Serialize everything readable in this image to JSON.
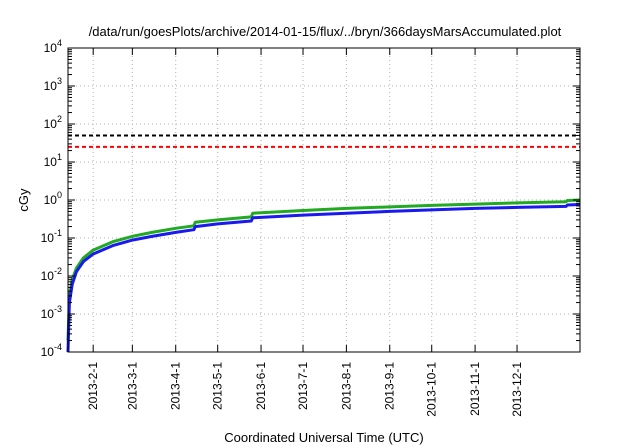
{
  "chart_data": {
    "type": "line",
    "title": "/data/run/goesPlots/archive/2014-01-15/flux/../bryn/366daysMarsAccumulated.plot",
    "xlabel": "Coordinated Universal Time (UTC)",
    "ylabel": "cGy",
    "yscale": "log",
    "ylim": [
      0.0001,
      10000
    ],
    "y_ticks": [
      {
        "value": 0.0001,
        "base": "10",
        "exp": "-4"
      },
      {
        "value": 0.001,
        "base": "10",
        "exp": "-3"
      },
      {
        "value": 0.01,
        "base": "10",
        "exp": "-2"
      },
      {
        "value": 0.1,
        "base": "10",
        "exp": "-1"
      },
      {
        "value": 1,
        "base": "10",
        "exp": "0"
      },
      {
        "value": 10,
        "base": "10",
        "exp": "1"
      },
      {
        "value": 100,
        "base": "10",
        "exp": "2"
      },
      {
        "value": 1000,
        "base": "10",
        "exp": "3"
      },
      {
        "value": 10000,
        "base": "10",
        "exp": "4"
      }
    ],
    "xlim": [
      "2013-01-14",
      "2014-01-15"
    ],
    "x_ticks": [
      {
        "date": "2013-02-01",
        "label": "2013-2-1"
      },
      {
        "date": "2013-03-01",
        "label": "2013-3-1"
      },
      {
        "date": "2013-04-01",
        "label": "2013-4-1"
      },
      {
        "date": "2013-05-01",
        "label": "2013-5-1"
      },
      {
        "date": "2013-06-01",
        "label": "2013-6-1"
      },
      {
        "date": "2013-07-01",
        "label": "2013-7-1"
      },
      {
        "date": "2013-08-01",
        "label": "2013-8-1"
      },
      {
        "date": "2013-09-01",
        "label": "2013-9-1"
      },
      {
        "date": "2013-10-01",
        "label": "2013-10-1"
      },
      {
        "date": "2013-11-01",
        "label": "2013-11-1"
      },
      {
        "date": "2013-12-01",
        "label": "2013-12-1"
      }
    ],
    "grid": true,
    "reference_lines": [
      {
        "y": 50,
        "color": "#000000",
        "style": "dashed"
      },
      {
        "y": 25,
        "color": "#ff0000",
        "style": "dashed"
      }
    ],
    "series": [
      {
        "color": "#22aa22",
        "points": [
          [
            "2013-01-14",
            0.0002
          ],
          [
            "2013-01-15",
            0.003
          ],
          [
            "2013-01-17",
            0.008
          ],
          [
            "2013-01-20",
            0.016
          ],
          [
            "2013-01-25",
            0.03
          ],
          [
            "2013-02-01",
            0.048
          ],
          [
            "2013-02-15",
            0.08
          ],
          [
            "2013-03-01",
            0.11
          ],
          [
            "2013-03-15",
            0.14
          ],
          [
            "2013-04-01",
            0.18
          ],
          [
            "2013-04-14",
            0.21
          ],
          [
            "2013-04-15",
            0.26
          ],
          [
            "2013-05-01",
            0.3
          ],
          [
            "2013-05-25",
            0.36
          ],
          [
            "2013-05-26",
            0.45
          ],
          [
            "2013-07-01",
            0.53
          ],
          [
            "2013-08-01",
            0.6
          ],
          [
            "2013-09-01",
            0.66
          ],
          [
            "2013-10-01",
            0.72
          ],
          [
            "2013-11-01",
            0.78
          ],
          [
            "2013-12-01",
            0.84
          ],
          [
            "2014-01-05",
            0.9
          ],
          [
            "2014-01-06",
            0.97
          ],
          [
            "2014-01-15",
            1.0
          ]
        ]
      },
      {
        "color": "#1a1aee",
        "points": [
          [
            "2013-01-14",
            0.0001
          ],
          [
            "2013-01-15",
            0.002
          ],
          [
            "2013-01-17",
            0.006
          ],
          [
            "2013-01-20",
            0.013
          ],
          [
            "2013-01-25",
            0.024
          ],
          [
            "2013-02-01",
            0.038
          ],
          [
            "2013-02-15",
            0.063
          ],
          [
            "2013-03-01",
            0.088
          ],
          [
            "2013-03-15",
            0.11
          ],
          [
            "2013-04-01",
            0.14
          ],
          [
            "2013-04-14",
            0.165
          ],
          [
            "2013-04-15",
            0.2
          ],
          [
            "2013-05-01",
            0.235
          ],
          [
            "2013-05-25",
            0.28
          ],
          [
            "2013-05-26",
            0.34
          ],
          [
            "2013-07-01",
            0.4
          ],
          [
            "2013-08-01",
            0.45
          ],
          [
            "2013-09-01",
            0.5
          ],
          [
            "2013-10-01",
            0.55
          ],
          [
            "2013-11-01",
            0.6
          ],
          [
            "2013-12-01",
            0.64
          ],
          [
            "2014-01-05",
            0.68
          ],
          [
            "2014-01-06",
            0.74
          ],
          [
            "2014-01-15",
            0.76
          ]
        ]
      }
    ]
  }
}
